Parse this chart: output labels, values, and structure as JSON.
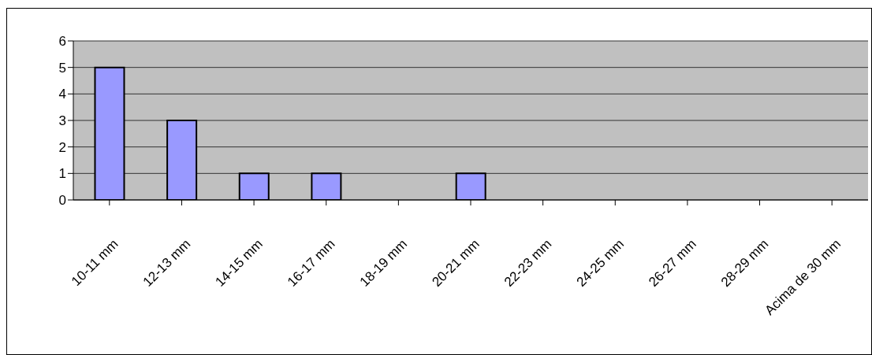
{
  "chart_data": {
    "type": "bar",
    "categories": [
      "10-11 mm",
      "12-13 mm",
      "14-15 mm",
      "16-17 mm",
      "18-19 mm",
      "20-21 mm",
      "22-23 mm",
      "24-25 mm",
      "26-27 mm",
      "28-29 mm",
      "Acima de 30 mm"
    ],
    "values": [
      5,
      3,
      1,
      1,
      0,
      1,
      0,
      0,
      0,
      0,
      0
    ],
    "color": "#9999ff",
    "ylim": [
      0,
      6
    ],
    "yticks": [
      0,
      1,
      2,
      3,
      4,
      5,
      6
    ],
    "grid": "y"
  }
}
